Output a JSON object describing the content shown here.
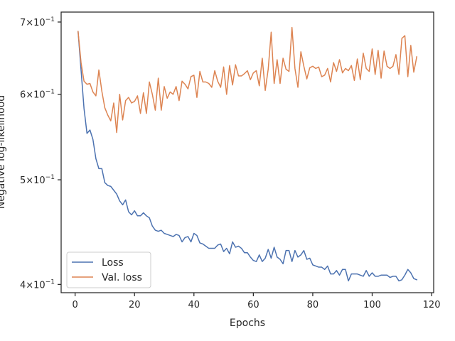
{
  "chart_data": {
    "type": "line",
    "title": "",
    "xlabel": "Epochs",
    "ylabel": "Negative log-likelihood",
    "xlim": [
      -4.7,
      120.7
    ],
    "ylim": [
      0.393,
      0.715
    ],
    "y_scale": "log",
    "grid": false,
    "legend_position": "lower-left",
    "x_ticks": [
      {
        "value": 0,
        "label": "0"
      },
      {
        "value": 20,
        "label": "20"
      },
      {
        "value": 40,
        "label": "40"
      },
      {
        "value": 60,
        "label": "60"
      },
      {
        "value": 80,
        "label": "80"
      },
      {
        "value": 100,
        "label": "100"
      },
      {
        "value": 120,
        "label": "120"
      }
    ],
    "y_ticks": [
      {
        "value": 0.4,
        "base": "4",
        "exp": "−1"
      },
      {
        "value": 0.5,
        "base": "5",
        "exp": "−1"
      },
      {
        "value": 0.6,
        "base": "6",
        "exp": "−1"
      },
      {
        "value": 0.7,
        "base": "7",
        "exp": "−1"
      }
    ],
    "x": [
      1,
      2,
      3,
      4,
      5,
      6,
      7,
      8,
      9,
      10,
      11,
      12,
      13,
      14,
      15,
      16,
      17,
      18,
      19,
      20,
      21,
      22,
      23,
      24,
      25,
      26,
      27,
      28,
      29,
      30,
      31,
      32,
      33,
      34,
      35,
      36,
      37,
      38,
      39,
      40,
      41,
      42,
      43,
      44,
      45,
      46,
      47,
      48,
      49,
      50,
      51,
      52,
      53,
      54,
      55,
      56,
      57,
      58,
      59,
      60,
      61,
      62,
      63,
      64,
      65,
      66,
      67,
      68,
      69,
      70,
      71,
      72,
      73,
      74,
      75,
      76,
      77,
      78,
      79,
      80,
      81,
      82,
      83,
      84,
      85,
      86,
      87,
      88,
      89,
      90,
      91,
      92,
      93,
      94,
      95,
      96,
      97,
      98,
      99,
      100,
      101,
      102,
      103,
      104,
      105,
      106,
      107,
      108,
      109,
      110,
      111,
      112,
      113,
      114,
      115
    ],
    "series": [
      {
        "name": "Loss",
        "color": "#4c72b0",
        "values": [
          0.686,
          0.632,
          0.582,
          0.552,
          0.556,
          0.545,
          0.523,
          0.512,
          0.512,
          0.497,
          0.494,
          0.493,
          0.489,
          0.485,
          0.478,
          0.474,
          0.479,
          0.467,
          0.464,
          0.468,
          0.463,
          0.463,
          0.466,
          0.463,
          0.461,
          0.453,
          0.449,
          0.448,
          0.449,
          0.446,
          0.445,
          0.444,
          0.443,
          0.445,
          0.444,
          0.438,
          0.442,
          0.443,
          0.438,
          0.446,
          0.444,
          0.437,
          0.436,
          0.434,
          0.432,
          0.432,
          0.432,
          0.435,
          0.436,
          0.429,
          0.432,
          0.427,
          0.438,
          0.433,
          0.434,
          0.432,
          0.428,
          0.428,
          0.424,
          0.421,
          0.42,
          0.426,
          0.42,
          0.423,
          0.431,
          0.423,
          0.433,
          0.424,
          0.422,
          0.418,
          0.43,
          0.43,
          0.42,
          0.43,
          0.424,
          0.426,
          0.43,
          0.422,
          0.423,
          0.417,
          0.416,
          0.415,
          0.415,
          0.413,
          0.416,
          0.409,
          0.409,
          0.412,
          0.408,
          0.413,
          0.413,
          0.403,
          0.409,
          0.409,
          0.409,
          0.408,
          0.407,
          0.412,
          0.407,
          0.41,
          0.407,
          0.407,
          0.408,
          0.408,
          0.408,
          0.406,
          0.407,
          0.407,
          0.403,
          0.404,
          0.408,
          0.413,
          0.41,
          0.405,
          0.404
        ]
      },
      {
        "name": "Val. loss",
        "color": "#dd8452",
        "values": [
          0.686,
          0.642,
          0.617,
          0.613,
          0.614,
          0.603,
          0.598,
          0.632,
          0.604,
          0.583,
          0.574,
          0.567,
          0.589,
          0.553,
          0.6,
          0.568,
          0.592,
          0.596,
          0.589,
          0.591,
          0.598,
          0.576,
          0.602,
          0.576,
          0.616,
          0.6,
          0.58,
          0.621,
          0.58,
          0.61,
          0.595,
          0.603,
          0.6,
          0.61,
          0.592,
          0.617,
          0.613,
          0.607,
          0.623,
          0.625,
          0.596,
          0.63,
          0.616,
          0.616,
          0.614,
          0.609,
          0.631,
          0.617,
          0.609,
          0.636,
          0.6,
          0.638,
          0.612,
          0.639,
          0.624,
          0.624,
          0.627,
          0.631,
          0.619,
          0.628,
          0.631,
          0.611,
          0.648,
          0.605,
          0.633,
          0.685,
          0.614,
          0.646,
          0.614,
          0.648,
          0.633,
          0.63,
          0.692,
          0.634,
          0.609,
          0.657,
          0.637,
          0.62,
          0.635,
          0.637,
          0.634,
          0.636,
          0.623,
          0.625,
          0.634,
          0.616,
          0.642,
          0.63,
          0.646,
          0.628,
          0.634,
          0.631,
          0.638,
          0.618,
          0.647,
          0.619,
          0.655,
          0.634,
          0.63,
          0.661,
          0.626,
          0.659,
          0.621,
          0.658,
          0.637,
          0.634,
          0.637,
          0.653,
          0.626,
          0.676,
          0.68,
          0.623,
          0.666,
          0.629,
          0.65
        ]
      }
    ]
  }
}
